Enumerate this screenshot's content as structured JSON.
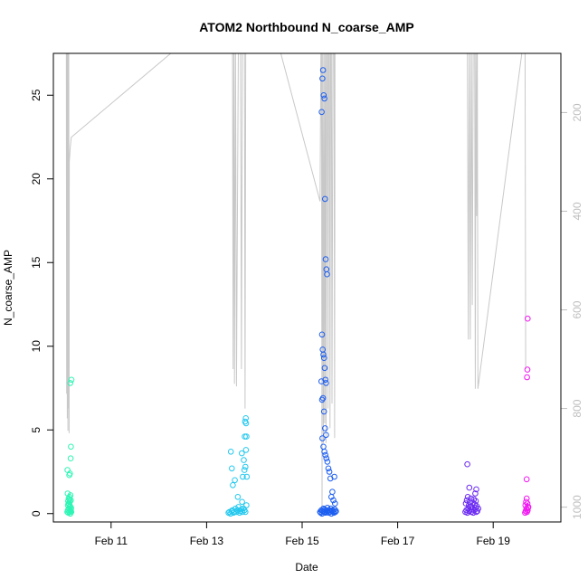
{
  "chart_data": {
    "type": "scatter",
    "title": "ATOM2 Northbound N_coarse_AMP",
    "xlabel": "Date",
    "ylabel": "N_coarse_AMP",
    "x_ticks": [
      {
        "date": "2015-02-11",
        "label": "Feb 11"
      },
      {
        "date": "2015-02-13",
        "label": "Feb 13"
      },
      {
        "date": "2015-02-15",
        "label": "Feb 15"
      },
      {
        "date": "2015-02-17",
        "label": "Feb 17"
      },
      {
        "date": "2015-02-19",
        "label": "Feb 19"
      }
    ],
    "xlim": [
      "2015-02-09T19:00",
      "2015-02-20T10:00"
    ],
    "ylim": [
      -0.5,
      27.5
    ],
    "y_ticks": [
      0,
      5,
      10,
      15,
      20,
      25
    ],
    "right_axis": {
      "label": "",
      "reversed": true,
      "lim": [
        1030,
        80
      ],
      "ticks": [
        200,
        400,
        600,
        800,
        1000
      ],
      "color": "#bebebe"
    },
    "grid": false,
    "series": [
      {
        "color": "#2ef5b5",
        "x": [
          "2015-02-10T02:00",
          "2015-02-10T02:15",
          "2015-02-10T02:30",
          "2015-02-10T02:45",
          "2015-02-10T03:00",
          "2015-02-10T03:10",
          "2015-02-10T03:20",
          "2015-02-10T03:30",
          "2015-02-10T03:40",
          "2015-02-10T03:50",
          "2015-02-10T04:00",
          "2015-02-10T02:20",
          "2015-02-10T02:50",
          "2015-02-10T03:15",
          "2015-02-10T03:45",
          "2015-02-10T02:40",
          "2015-02-10T03:05",
          "2015-02-10T03:35",
          "2015-02-10T02:10",
          "2015-02-10T02:35",
          "2015-02-10T03:25",
          "2015-02-10T03:55",
          "2015-02-10T02:25",
          "2015-02-10T03:00",
          "2015-02-10T03:20",
          "2015-02-10T03:40",
          "2015-02-10T03:50",
          "2015-02-10T02:05",
          "2015-02-10T02:55",
          "2015-02-10T03:10",
          "2015-02-10T03:30",
          "2015-02-10T04:05"
        ],
        "y": [
          0.1,
          0.2,
          0.05,
          0.3,
          0.1,
          0.4,
          0.2,
          0.0,
          0.15,
          0.25,
          0.1,
          0.5,
          0.6,
          0.7,
          0.8,
          0.9,
          1.0,
          1.1,
          1.2,
          0.6,
          0.45,
          0.35,
          0.75,
          2.3,
          2.4,
          3.3,
          4.0,
          2.6,
          0.55,
          0.85,
          7.8,
          8.0
        ]
      },
      {
        "color": "#22c8ee",
        "x": [
          "2015-02-13T11:00",
          "2015-02-13T11:30",
          "2015-02-13T12:00",
          "2015-02-13T12:30",
          "2015-02-13T13:00",
          "2015-02-13T13:30",
          "2015-02-13T14:00",
          "2015-02-13T14:30",
          "2015-02-13T15:00",
          "2015-02-13T15:30",
          "2015-02-13T16:00",
          "2015-02-13T16:30",
          "2015-02-13T17:00",
          "2015-02-13T17:30",
          "2015-02-13T18:00",
          "2015-02-13T18:30",
          "2015-02-13T19:00",
          "2015-02-13T19:30",
          "2015-02-13T20:00",
          "2015-02-13T12:10",
          "2015-02-13T12:40",
          "2015-02-13T13:10",
          "2015-02-13T14:10",
          "2015-02-13T15:40",
          "2015-02-13T17:40",
          "2015-02-13T18:10",
          "2015-02-13T18:40",
          "2015-02-13T19:10",
          "2015-02-13T19:20",
          "2015-02-13T19:40",
          "2015-02-13T19:50",
          "2015-02-13T20:00",
          "2015-02-13T19:30",
          "2015-02-13T19:45",
          "2015-02-13T20:10",
          "2015-02-13T17:50",
          "2015-02-13T19:00"
        ],
        "y": [
          0.05,
          0.1,
          0.0,
          0.15,
          0.2,
          0.05,
          0.1,
          0.3,
          0.1,
          0.2,
          0.4,
          0.05,
          0.15,
          0.25,
          0.1,
          0.3,
          0.2,
          0.1,
          0.5,
          3.7,
          2.7,
          1.7,
          2.0,
          1.0,
          3.6,
          2.2,
          3.2,
          4.6,
          5.5,
          5.7,
          5.4,
          4.6,
          2.8,
          3.8,
          2.2,
          0.7,
          2.6
        ]
      },
      {
        "color": "#1d5ef0",
        "x": [
          "2015-02-15T09:00",
          "2015-02-15T09:20",
          "2015-02-15T09:40",
          "2015-02-15T10:00",
          "2015-02-15T10:20",
          "2015-02-15T10:40",
          "2015-02-15T11:00",
          "2015-02-15T11:20",
          "2015-02-15T11:40",
          "2015-02-15T12:00",
          "2015-02-15T12:20",
          "2015-02-15T12:40",
          "2015-02-15T13:00",
          "2015-02-15T13:20",
          "2015-02-15T13:40",
          "2015-02-15T14:00",
          "2015-02-15T14:20",
          "2015-02-15T14:40",
          "2015-02-15T15:00",
          "2015-02-15T15:20",
          "2015-02-15T15:40",
          "2015-02-15T16:00",
          "2015-02-15T16:20",
          "2015-02-15T16:40",
          "2015-02-15T17:00",
          "2015-02-15T09:50",
          "2015-02-15T10:10",
          "2015-02-15T10:30",
          "2015-02-15T10:50",
          "2015-02-15T11:10",
          "2015-02-15T11:30",
          "2015-02-15T11:50",
          "2015-02-15T12:10",
          "2015-02-15T12:30",
          "2015-02-15T10:00",
          "2015-02-15T10:20",
          "2015-02-15T10:40",
          "2015-02-15T11:00",
          "2015-02-15T11:20",
          "2015-02-15T11:40",
          "2015-02-15T12:00",
          "2015-02-15T09:40",
          "2015-02-15T10:00",
          "2015-02-15T10:30",
          "2015-02-15T11:00",
          "2015-02-15T11:30",
          "2015-02-15T12:00",
          "2015-02-15T10:10",
          "2015-02-15T10:40",
          "2015-02-15T11:10",
          "2015-02-15T11:40",
          "2015-02-15T12:10",
          "2015-02-15T12:40",
          "2015-02-15T13:10",
          "2015-02-15T13:40",
          "2015-02-15T14:10",
          "2015-02-15T15:10",
          "2015-02-15T16:10",
          "2015-02-15T14:40",
          "2015-02-15T15:40",
          "2015-02-15T16:30"
        ],
        "y": [
          0.1,
          0.05,
          0.2,
          0.0,
          0.15,
          0.3,
          0.1,
          0.25,
          0.05,
          0.2,
          0.1,
          0.35,
          0.15,
          0.05,
          0.2,
          0.1,
          0.3,
          0.0,
          0.15,
          0.2,
          0.1,
          0.05,
          0.25,
          0.1,
          0.15,
          24.0,
          26.0,
          26.5,
          25.0,
          24.8,
          18.8,
          15.2,
          14.6,
          14.3,
          10.7,
          9.8,
          9.5,
          9.3,
          8.7,
          8.0,
          7.8,
          7.9,
          6.8,
          6.9,
          6.1,
          5.1,
          4.7,
          4.5,
          4.0,
          3.7,
          3.5,
          3.3,
          3.1,
          2.7,
          2.5,
          2.1,
          1.3,
          2.2,
          1.0,
          0.8,
          0.6
        ]
      },
      {
        "color": "#6a2af2",
        "x": [
          "2015-02-18T10:00",
          "2015-02-18T10:30",
          "2015-02-18T11:00",
          "2015-02-18T11:30",
          "2015-02-18T12:00",
          "2015-02-18T12:30",
          "2015-02-18T13:00",
          "2015-02-18T13:30",
          "2015-02-18T14:00",
          "2015-02-18T14:30",
          "2015-02-18T15:00",
          "2015-02-18T15:30",
          "2015-02-18T16:00",
          "2015-02-18T16:30",
          "2015-02-18T10:15",
          "2015-02-18T10:45",
          "2015-02-18T11:15",
          "2015-02-18T11:45",
          "2015-02-18T12:15",
          "2015-02-18T12:45",
          "2015-02-18T13:15",
          "2015-02-18T13:45",
          "2015-02-18T14:15",
          "2015-02-18T14:45",
          "2015-02-18T15:15",
          "2015-02-18T15:45",
          "2015-02-18T11:00",
          "2015-02-18T12:00",
          "2015-02-18T15:00",
          "2015-02-18T15:30"
        ],
        "y": [
          0.1,
          0.2,
          0.05,
          0.3,
          0.15,
          0.4,
          0.1,
          0.25,
          0.05,
          0.2,
          0.35,
          0.1,
          0.15,
          0.3,
          0.6,
          0.8,
          1.0,
          0.5,
          0.7,
          0.9,
          0.4,
          0.65,
          0.85,
          0.55,
          0.75,
          0.45,
          2.95,
          1.55,
          1.2,
          1.45
        ]
      },
      {
        "color": "#f016f0",
        "x": [
          "2015-02-19T16:00",
          "2015-02-19T16:20",
          "2015-02-19T16:40",
          "2015-02-19T17:00",
          "2015-02-19T17:20",
          "2015-02-19T17:40",
          "2015-02-19T16:10",
          "2015-02-19T16:30",
          "2015-02-19T16:50",
          "2015-02-19T17:10",
          "2015-02-19T17:30",
          "2015-02-19T16:50",
          "2015-02-19T17:10",
          "2015-02-19T17:00",
          "2015-02-19T17:20"
        ],
        "y": [
          0.05,
          0.15,
          0.3,
          0.1,
          0.2,
          0.4,
          0.5,
          0.7,
          0.9,
          0.6,
          0.35,
          2.05,
          8.6,
          8.15,
          11.65
        ]
      }
    ],
    "right_series": {
      "color": "#c8c8c8",
      "x": [
        "2015-02-10T01:30",
        "2015-02-10T01:40",
        "2015-02-10T01:45",
        "2015-02-10T02:00",
        "2015-02-10T02:10",
        "2015-02-10T02:20",
        "2015-02-10T02:30",
        "2015-02-10T02:40",
        "2015-02-10T02:45",
        "2015-02-10T02:55",
        "2015-02-10T03:00",
        "2015-02-10T03:10",
        "2015-02-10T03:20",
        "2015-02-10T03:30",
        "2015-02-10T04:00",
        "2015-02-12T06:00",
        "2015-02-12T20:00",
        "2015-02-13T13:00",
        "2015-02-13T13:20",
        "2015-02-13T13:40",
        "2015-02-13T14:00",
        "2015-02-13T14:30",
        "2015-02-13T15:00",
        "2015-02-13T16:00",
        "2015-02-13T17:00",
        "2015-02-13T17:30",
        "2015-02-13T18:00",
        "2015-02-13T19:00",
        "2015-02-13T19:20",
        "2015-02-13T19:40",
        "2015-02-13T20:00",
        "2015-02-14T10:00",
        "2015-02-15T09:00",
        "2015-02-15T09:30",
        "2015-02-15T09:45",
        "2015-02-15T10:00",
        "2015-02-15T10:20",
        "2015-02-15T10:40",
        "2015-02-15T11:00",
        "2015-02-15T11:20",
        "2015-02-15T11:40",
        "2015-02-15T12:00",
        "2015-02-15T12:20",
        "2015-02-15T12:40",
        "2015-02-15T13:00",
        "2015-02-15T13:20",
        "2015-02-15T13:40",
        "2015-02-15T14:00",
        "2015-02-15T14:20",
        "2015-02-15T14:40",
        "2015-02-15T15:00",
        "2015-02-15T15:30",
        "2015-02-15T16:00",
        "2015-02-15T16:20",
        "2015-02-15T16:30",
        "2015-02-18T11:00",
        "2015-02-18T11:30",
        "2015-02-18T12:00",
        "2015-02-18T12:30",
        "2015-02-18T13:00",
        "2015-02-18T13:30",
        "2015-02-18T14:00",
        "2015-02-18T14:20",
        "2015-02-18T14:40",
        "2015-02-18T15:00",
        "2015-02-18T15:20",
        "2015-02-18T15:40",
        "2015-02-18T16:00",
        "2015-02-18T16:20",
        "2015-02-19T16:00",
        "2015-02-19T16:20"
      ],
      "y": [
        30,
        770,
        30,
        820,
        30,
        845,
        30,
        800,
        30,
        850,
        300,
        290,
        280,
        270,
        250,
        80,
        30,
        30,
        720,
        30,
        750,
        30,
        755,
        30,
        30,
        720,
        30,
        30,
        800,
        30,
        30,
        30,
        380,
        30,
        30,
        1000,
        30,
        870,
        30,
        830,
        30,
        870,
        30,
        30,
        800,
        30,
        30,
        840,
        30,
        30,
        790,
        30,
        30,
        860,
        30,
        30,
        660,
        30,
        660,
        30,
        590,
        30,
        30,
        30,
        760,
        30,
        410,
        30,
        760,
        30,
        720
      ]
    }
  }
}
